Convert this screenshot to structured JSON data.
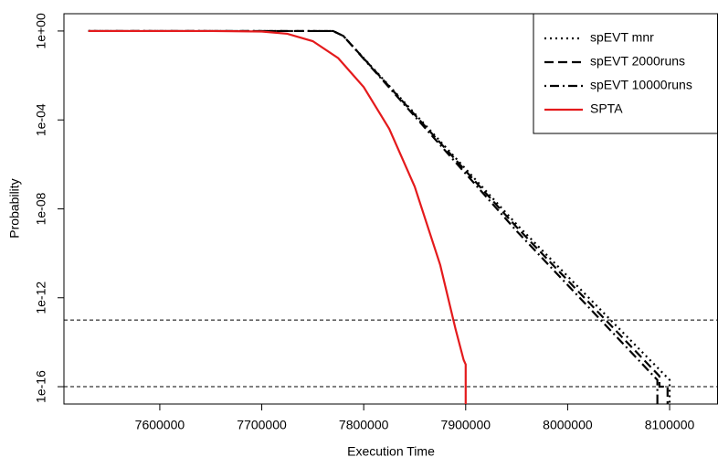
{
  "chart_data": {
    "type": "line",
    "x_label": "Execution Time",
    "y_label": "Probability",
    "log_y": true,
    "xlim": [
      7506000,
      8147000
    ],
    "ylim": [
      1.66e-17,
      6
    ],
    "xticks": [
      7600000,
      7700000,
      7800000,
      7900000,
      8000000,
      8100000
    ],
    "yticks": [
      {
        "value": 1,
        "label": "1e+00"
      },
      {
        "value": 0.0001,
        "label": "1e-04"
      },
      {
        "value": 1e-08,
        "label": "1e-08"
      },
      {
        "value": 1e-12,
        "label": "1e-12"
      },
      {
        "value": 1e-16,
        "label": "1e-16"
      }
    ],
    "hlines": [
      1e-13,
      1e-16
    ],
    "legend": "top-right",
    "series": [
      {
        "name": "spEVT mnr",
        "color": "#000000",
        "dash": "dotted",
        "x": [
          7530000,
          7770000,
          7780000,
          7950000,
          8100000,
          8100000
        ],
        "values": [
          1,
          1,
          0.6,
          2e-09,
          2e-16,
          1e-17
        ]
      },
      {
        "name": "spEVT 2000runs",
        "color": "#000000",
        "dash": "dashed",
        "x": [
          7530000,
          7770000,
          7780000,
          7950000,
          8090000,
          8090000,
          8098000,
          8098000
        ],
        "values": [
          1,
          1,
          0.6,
          1.5e-09,
          3e-16,
          1e-16,
          1e-16,
          1e-17
        ]
      },
      {
        "name": "spEVT 10000runs",
        "color": "#000000",
        "dash": "dotdash",
        "x": [
          7530000,
          7770000,
          7780000,
          7950000,
          8088000,
          8088000
        ],
        "values": [
          1,
          1,
          0.6,
          1e-09,
          2e-16,
          1e-17
        ]
      },
      {
        "name": "SPTA",
        "color": "#e41a1c",
        "dash": "solid",
        "x": [
          7530000,
          7650000,
          7700000,
          7725000,
          7750000,
          7775000,
          7800000,
          7825000,
          7850000,
          7875000,
          7890000,
          7898000,
          7900000,
          7900000
        ],
        "values": [
          1,
          1,
          0.95,
          0.75,
          0.35,
          0.06,
          0.003,
          4e-05,
          1e-07,
          3e-11,
          4e-14,
          1.6e-15,
          1e-15,
          1e-17
        ]
      }
    ]
  }
}
